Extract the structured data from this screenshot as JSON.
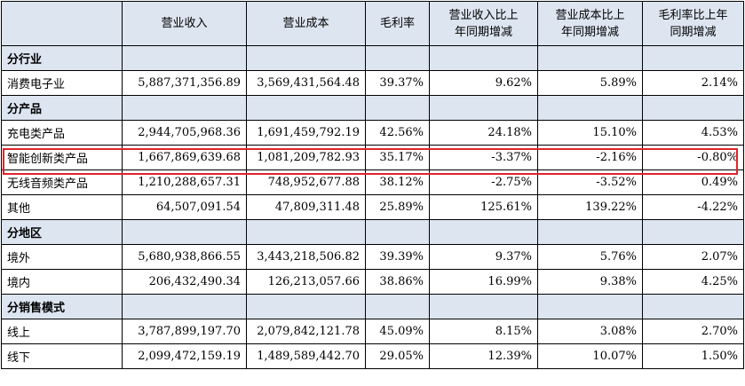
{
  "header": {
    "col1": "营业收入",
    "col2": "营业成本",
    "col3": "毛利率",
    "col4_line1": "营业收入比上",
    "col4_line2": "年同期增减",
    "col5_line1": "营业成本比上",
    "col5_line2": "年同期增减",
    "col6_line1": "毛利率比上年",
    "col6_line2": "同期增减"
  },
  "sections": {
    "industry": "分行业",
    "product": "分产品",
    "region": "分地区",
    "sales": "分销售模式"
  },
  "rows": {
    "consumer_electronics": [
      "消费电子业",
      "5,887,371,356.89",
      "3,569,431,564.48",
      "39.37%",
      "9.62%",
      "5.89%",
      "2.14%"
    ],
    "charging": [
      "充电类产品",
      "2,944,705,968.36",
      "1,691,459,792.19",
      "42.56%",
      "24.18%",
      "15.10%",
      "4.53%"
    ],
    "smart_innovation": [
      "智能创新类产品",
      "1,667,869,639.68",
      "1,081,209,782.93",
      "35.17%",
      "-3.37%",
      "-2.16%",
      "-0.80%"
    ],
    "wireless_audio": [
      "无线音频类产品",
      "1,210,288,657.31",
      "748,952,677.88",
      "38.12%",
      "-2.75%",
      "-3.52%",
      "0.49%"
    ],
    "other": [
      "其他",
      "64,507,091.54",
      "47,809,311.48",
      "25.89%",
      "125.61%",
      "139.22%",
      "-4.22%"
    ],
    "overseas": [
      "境外",
      "5,680,938,866.55",
      "3,443,218,506.82",
      "39.39%",
      "9.37%",
      "5.76%",
      "2.07%"
    ],
    "domestic": [
      "境内",
      "206,432,490.34",
      "126,213,057.66",
      "38.86%",
      "16.99%",
      "9.38%",
      "4.25%"
    ],
    "online": [
      "线上",
      "3,787,899,197.70",
      "2,079,842,121.78",
      "45.09%",
      "8.15%",
      "3.08%",
      "2.70%"
    ],
    "offline": [
      "线下",
      "2,099,472,159.19",
      "1,489,589,442.70",
      "29.05%",
      "12.39%",
      "10.07%",
      "1.50%"
    ]
  },
  "highlight_color": "#e0242c",
  "header_bg": "#dde5f1"
}
